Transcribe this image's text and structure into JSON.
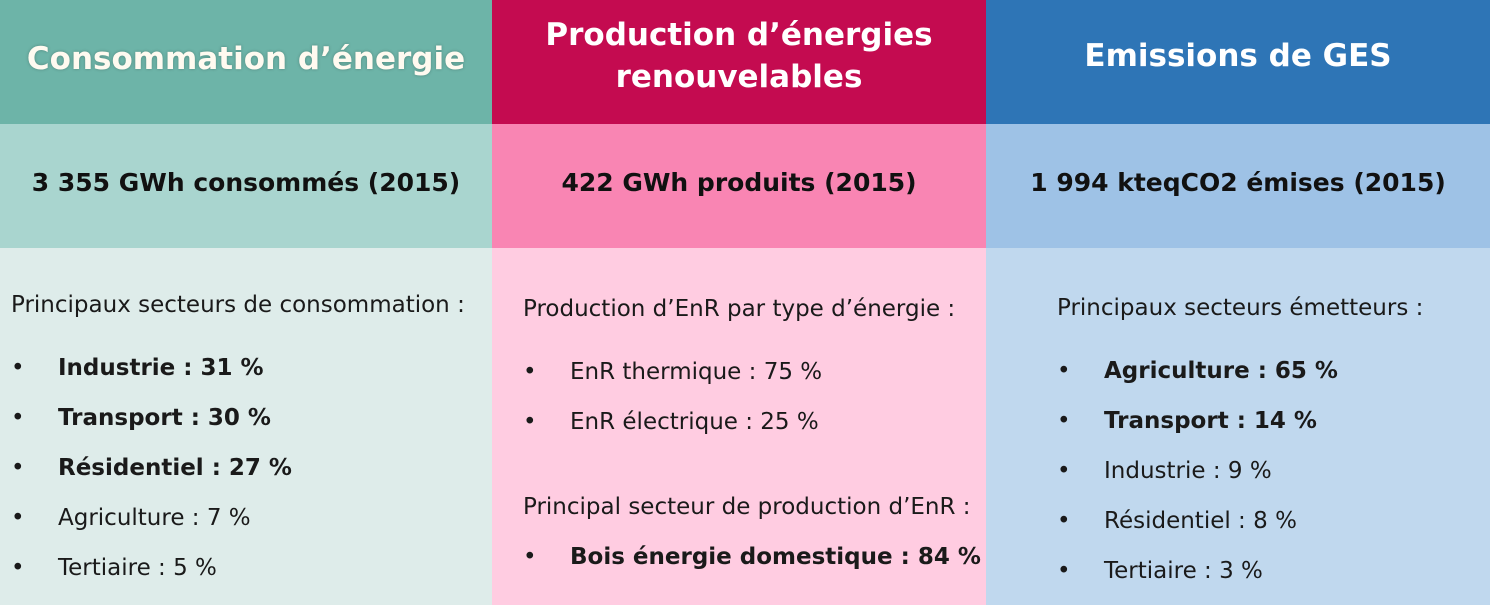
{
  "columns": [
    {
      "title": "Consommation d’énergie",
      "stat": "3 355 GWh consommés (2015)",
      "section1_label": "Principaux secteurs de consommation :",
      "items": [
        {
          "text": "Industrie : 31 %",
          "bold": true
        },
        {
          "text": "Transport : 30 %",
          "bold": true
        },
        {
          "text": "Résidentiel : 27 %",
          "bold": true
        },
        {
          "text": "Agriculture : 7 %",
          "bold": false
        },
        {
          "text": "Tertiaire : 5 %",
          "bold": false
        }
      ]
    },
    {
      "title": "Production d’énergies renouvelables",
      "stat": "422 GWh produits (2015)",
      "section1_label": "Production d’EnR par type d’énergie :",
      "items": [
        {
          "text": "EnR thermique : 75 %",
          "bold": false
        },
        {
          "text": "EnR électrique : 25 %",
          "bold": false
        }
      ],
      "section2_label": "Principal secteur de production d’EnR :",
      "items2": [
        {
          "text": "Bois énergie domestique : 84 %",
          "bold": true
        }
      ]
    },
    {
      "title": "Emissions de GES",
      "stat": "1 994 kteqCO2 émises (2015)",
      "section1_label": "Principaux secteurs émetteurs :",
      "items": [
        {
          "text": "Agriculture : 65 %",
          "bold": true
        },
        {
          "text": "Transport : 14 %",
          "bold": true
        },
        {
          "text": "Industrie : 9 %",
          "bold": false
        },
        {
          "text": "Résidentiel : 8 %",
          "bold": false
        },
        {
          "text": "Tertiaire : 3 %",
          "bold": false
        }
      ]
    }
  ],
  "bullet": "•",
  "colors": {
    "energy_header": "#6db4a8",
    "energy_stat": "#a9d5cf",
    "energy_body": "#deecea",
    "renewables_header": "#c40b50",
    "renewables_stat": "#f985b3",
    "renewables_body": "#ffcce1",
    "ghg_header": "#2e75b6",
    "ghg_stat": "#9ec2e6",
    "ghg_body": "#c0d8ee"
  }
}
